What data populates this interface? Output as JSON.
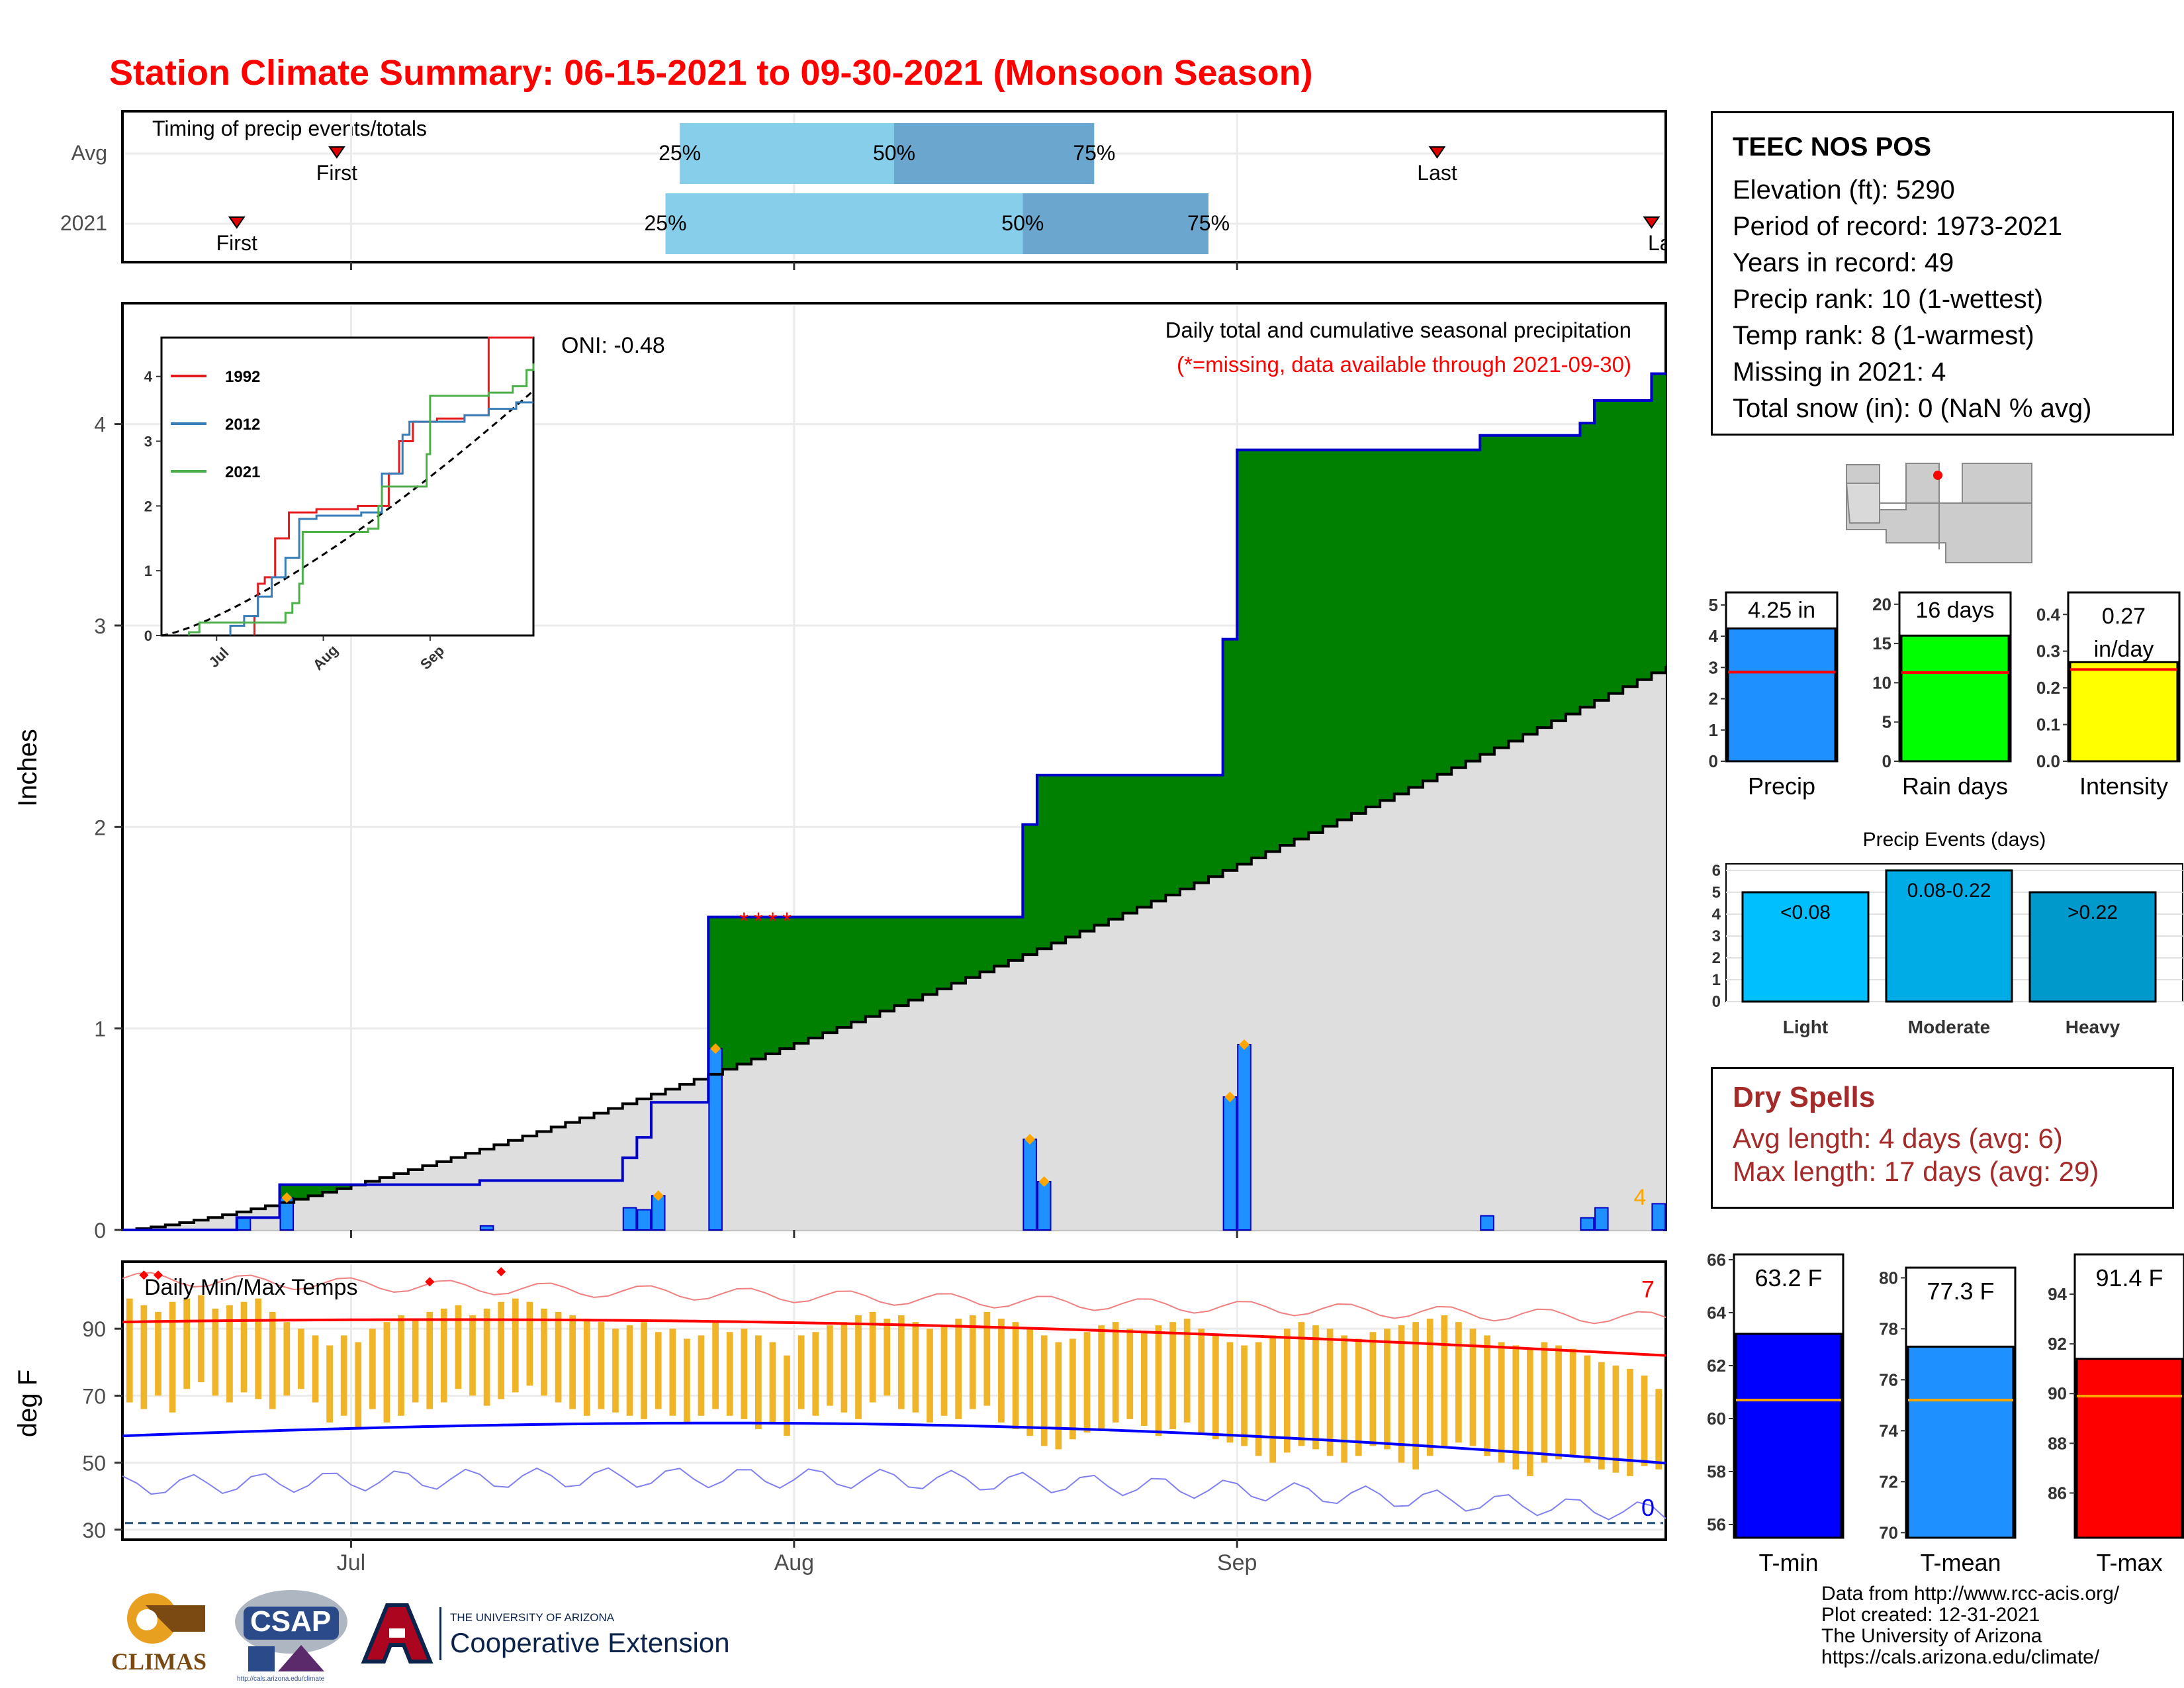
{
  "title": "Station Climate Summary: 06-15-2021 to 09-30-2021 (Monsoon Season)",
  "colors": {
    "title": "#ff0000",
    "cumulative_2021_above": "#008000",
    "cumulative_2021_below": "#7a4a12",
    "avg_fill": "#dedede",
    "daily_bar": "#1e90ff",
    "tmax_line": "#ff0000",
    "tmin_line": "#0000ff",
    "temp_bar": "#f0b429",
    "dry_text": "#a52a2a"
  },
  "timing_panel": {
    "title": "Timing of precip events/totals",
    "rows": [
      {
        "label": "Avg",
        "first_label": "First",
        "last_label": "Last",
        "first_date": "2021-06-30",
        "last_date": "2021-09-15",
        "p25_label": "25%",
        "p50_label": "50%",
        "p75_label": "75%",
        "p25_date": "2021-07-24",
        "p50_date": "2021-08-08",
        "p75_date": "2021-08-22"
      },
      {
        "label": "2021",
        "first_label": "First",
        "last_label": "Last",
        "first_date": "2021-06-23",
        "last_date": "2021-09-30",
        "p25_label": "25%",
        "p50_label": "50%",
        "p75_label": "75%",
        "p25_date": "2021-07-23",
        "p50_date": "2021-08-17",
        "p75_date": "2021-08-30"
      }
    ]
  },
  "precip_panel": {
    "ylabel": "Inches",
    "yticks": [
      0,
      1,
      2,
      3,
      4
    ],
    "ylim": [
      0,
      4.6
    ],
    "oni_label": "ONI: -0.48",
    "subtitle": "Daily total and cumulative seasonal precipitation",
    "missing_note": "(*=missing, data available through 2021-09-30)",
    "missing_count_label": "4",
    "inset": {
      "yticks": [
        0,
        1,
        2,
        3,
        4
      ],
      "xticks": [
        "Jul",
        "Aug",
        "Sep"
      ],
      "legend": [
        {
          "name": "1992",
          "color": "#e41a1c"
        },
        {
          "name": "2012",
          "color": "#377eb8"
        },
        {
          "name": "2021",
          "color": "#4daf4a"
        }
      ]
    }
  },
  "temp_panel": {
    "ylabel": "deg F",
    "yticks": [
      30,
      50,
      70,
      90
    ],
    "title": "Daily Min/Max Temps",
    "above_count": "7",
    "below_count": "0",
    "xticks": [
      "Jul",
      "Aug",
      "Sep"
    ]
  },
  "station": {
    "name": "TEEC NOS POS",
    "elevation": "Elevation (ft): 5290",
    "period": "Period of record: 1973-2021",
    "years": "Years in record: 49",
    "precip_rank": "Precip rank: 10 (1-wettest)",
    "temp_rank": "Temp rank: 8 (1-warmest)",
    "missing": "Missing in 2021: 4",
    "snow": "Total snow (in): 0 (NaN % avg)"
  },
  "summary_bars": [
    {
      "label": "Precip",
      "value_label": "4.25 in",
      "value": 4.25,
      "avg": 2.85,
      "ylim": [
        0,
        5.4
      ],
      "yticks": [
        0,
        1,
        2,
        3,
        4,
        5
      ],
      "color": "#1e90ff"
    },
    {
      "label": "Rain days",
      "value_label": "16 days",
      "value": 16,
      "avg": 11.3,
      "ylim": [
        0,
        21.5
      ],
      "yticks": [
        0,
        5,
        10,
        15,
        20
      ],
      "color": "#00ff00"
    },
    {
      "label": "Intensity",
      "value_label": "0.27 in/day",
      "value_label_1": "0.27",
      "value_label_2": "in/day",
      "value": 0.27,
      "avg": 0.25,
      "ylim": [
        0,
        0.46
      ],
      "yticks": [
        "0.0",
        "0.1",
        "0.2",
        "0.3",
        "0.4"
      ],
      "color": "#ffff00"
    }
  ],
  "precip_events": {
    "title": "Precip Events (days)",
    "yticks": [
      0,
      1,
      2,
      3,
      4,
      5,
      6
    ],
    "bars": [
      {
        "label": "Light",
        "range": "<0.08",
        "value": 5,
        "color": "#00bfff"
      },
      {
        "label": "Moderate",
        "range": "0.08-0.22",
        "value": 6,
        "color": "#00ace6"
      },
      {
        "label": "Heavy",
        "range": ">0.22",
        "value": 5,
        "color": "#0099cc"
      }
    ]
  },
  "dry_spells": {
    "title": "Dry Spells",
    "avg": "Avg length: 4 days (avg: 6)",
    "max": "Max length: 17 days (avg: 29)"
  },
  "temp_bars": [
    {
      "label": "T-min",
      "value_label": "63.2 F",
      "value": 63.2,
      "avg": 60.7,
      "ylim": [
        55.5,
        66.2
      ],
      "yticks": [
        56,
        58,
        60,
        62,
        64,
        66
      ],
      "color": "#0000ff"
    },
    {
      "label": "T-mean",
      "value_label": "77.3 F",
      "value": 77.3,
      "avg": 75.2,
      "ylim": [
        69.8,
        80.4
      ],
      "yticks": [
        70,
        72,
        74,
        76,
        78,
        80
      ],
      "color": "#1e90ff"
    },
    {
      "label": "T-max",
      "value_label": "91.4 F",
      "value": 91.4,
      "avg": 89.9,
      "ylim": [
        84.2,
        95.6
      ],
      "yticks": [
        86,
        88,
        90,
        92,
        94
      ],
      "color": "#ff0000"
    }
  ],
  "footer": {
    "lines": [
      "Data from http://www.rcc-acis.org/",
      "Plot created: 12-31-2021",
      "The University of Arizona",
      "https://cals.arizona.edu/climate/"
    ],
    "logo_climas": "CLIMAS",
    "logo_csap": "CSAP",
    "logo_csap_url": "http://cals.arizona.edu/climate",
    "logo_ua_top": "THE UNIVERSITY OF ARIZONA",
    "logo_ua_main": "Cooperative Extension"
  },
  "chart_data": [
    {
      "type": "area",
      "title": "Daily total and cumulative seasonal precipitation",
      "ylabel": "Inches",
      "ylim": [
        0,
        4.6
      ],
      "x_start": "2021-06-15",
      "x_end": "2021-09-30",
      "daily_precip_2021": [
        {
          "date": "2021-06-23",
          "value": 0.06
        },
        {
          "date": "2021-06-26",
          "value": 0.16
        },
        {
          "date": "2021-07-10",
          "value": 0.02
        },
        {
          "date": "2021-07-20",
          "value": 0.11
        },
        {
          "date": "2021-07-21",
          "value": 0.1
        },
        {
          "date": "2021-07-22",
          "value": 0.17
        },
        {
          "date": "2021-07-26",
          "value": 0.9
        },
        {
          "date": "2021-08-17",
          "value": 0.45
        },
        {
          "date": "2021-08-18",
          "value": 0.24
        },
        {
          "date": "2021-08-31",
          "value": 0.66
        },
        {
          "date": "2021-09-01",
          "value": 0.92
        },
        {
          "date": "2021-09-18",
          "value": 0.07
        },
        {
          "date": "2021-09-25",
          "value": 0.06
        },
        {
          "date": "2021-09-26",
          "value": 0.11
        },
        {
          "date": "2021-09-30",
          "value": 0.13
        }
      ],
      "missing_dates": [
        "2021-07-28",
        "2021-07-29",
        "2021-07-30",
        "2021-07-31"
      ],
      "cumulative_2021_final": 4.25,
      "cumulative_avg_final": 2.8
    },
    {
      "type": "bar",
      "ylabel": "deg F",
      "title": "Daily Min/Max Temps",
      "ylim": [
        27,
        110
      ],
      "daily_temps_2021": [
        {
          "start": "2021-06-15",
          "tmax": [
            99,
            97,
            95,
            98,
            99,
            100,
            96,
            97,
            98,
            99,
            95,
            92,
            90,
            88
          ],
          "tmin": [
            68,
            66,
            70,
            65,
            72,
            74,
            70,
            68,
            71,
            69,
            66,
            70,
            72,
            68
          ]
        },
        {
          "start": "2021-06-29",
          "tmax": [
            85,
            88,
            86,
            90,
            92,
            94,
            93,
            95,
            96,
            97,
            94,
            96,
            98,
            99,
            98,
            96,
            95,
            94,
            93,
            92,
            90,
            91,
            92,
            89,
            90,
            87,
            88
          ],
          "tmin": [
            62,
            64,
            60,
            66,
            62,
            64,
            68,
            66,
            68,
            72,
            70,
            67,
            69,
            71,
            73,
            70,
            68,
            66,
            64,
            66,
            65,
            64,
            63,
            66,
            64,
            62,
            64
          ]
        },
        {
          "start": "2021-07-26",
          "tmax": [
            92,
            89,
            90,
            88,
            86,
            82
          ],
          "tmin": [
            66,
            64,
            63,
            60,
            62,
            58
          ]
        },
        {
          "start": "2021-08-01",
          "tmax": [
            88,
            89,
            91,
            92,
            94,
            95,
            93,
            94,
            92,
            90,
            91,
            93,
            94,
            95,
            93,
            92,
            90,
            88,
            86,
            87,
            89,
            91,
            92,
            90,
            89,
            91,
            92,
            93,
            90,
            88,
            86
          ],
          "tmin": [
            66,
            64,
            67,
            65,
            63,
            68,
            70,
            66,
            65,
            62,
            64,
            63,
            66,
            67,
            62,
            60,
            58,
            55,
            54,
            57,
            59,
            60,
            62,
            63,
            61,
            58,
            60,
            62,
            59,
            57,
            56
          ]
        },
        {
          "start": "2021-09-01",
          "tmax": [
            85,
            86,
            88,
            90,
            92,
            91,
            90,
            88,
            87,
            89,
            90,
            91,
            92,
            93,
            94,
            92,
            90,
            88,
            86,
            85,
            84,
            86,
            85,
            84,
            82,
            80,
            79,
            78,
            76,
            72
          ],
          "tmin": [
            55,
            52,
            50,
            53,
            55,
            54,
            52,
            50,
            52,
            55,
            54,
            50,
            48,
            52,
            55,
            56,
            55,
            52,
            50,
            48,
            46,
            50,
            51,
            52,
            50,
            48,
            47,
            46,
            49,
            48
          ]
        }
      ],
      "avg_tmax_start": 92,
      "avg_tmax_end": 82,
      "avg_tmin_start": 58,
      "avg_tmin_end": 48
    }
  ]
}
